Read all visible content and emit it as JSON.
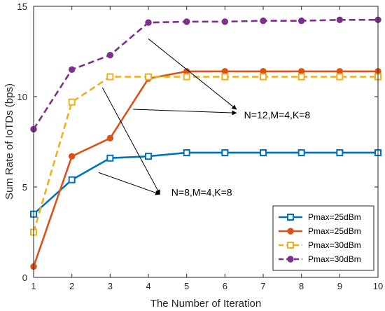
{
  "chart_data": {
    "type": "line",
    "title": "",
    "xlabel": "The Number of Iteration",
    "ylabel": "Sum Rate of IoTDs (bps)",
    "xlim": [
      1,
      10
    ],
    "ylim": [
      0,
      15
    ],
    "x": [
      1,
      2,
      3,
      4,
      5,
      6,
      7,
      8,
      9,
      10
    ],
    "x_ticks": [
      "1",
      "2",
      "3",
      "4",
      "5",
      "6",
      "7",
      "8",
      "9",
      "10"
    ],
    "y_ticks": [
      "0",
      "5",
      "10",
      "15"
    ],
    "grid": false,
    "legend_position": "bottom-right",
    "series": [
      {
        "name": "Pmax=25dBm",
        "color": "#0072BD",
        "line_style": "solid",
        "marker": "square",
        "values": [
          3.5,
          5.4,
          6.6,
          6.7,
          6.9,
          6.9,
          6.9,
          6.9,
          6.9,
          6.9
        ]
      },
      {
        "name": "Pmax=25dBm",
        "color": "#D95319",
        "line_style": "solid",
        "marker": "circle",
        "values": [
          0.6,
          6.7,
          7.7,
          11.0,
          11.4,
          11.4,
          11.4,
          11.4,
          11.4,
          11.4
        ]
      },
      {
        "name": "Pmax=30dBm",
        "color": "#EDB120",
        "line_style": "dashed",
        "marker": "square",
        "values": [
          2.5,
          9.7,
          11.1,
          11.1,
          11.1,
          11.1,
          11.1,
          11.1,
          11.1,
          11.1
        ]
      },
      {
        "name": "Pmax=30dBm",
        "color": "#7E2F8E",
        "line_style": "dashed",
        "marker": "circle",
        "values": [
          8.2,
          11.5,
          12.3,
          14.1,
          14.15,
          14.15,
          14.2,
          14.2,
          14.25,
          14.25
        ]
      }
    ],
    "annotations": [
      {
        "text": "N=12,M=4,K=8",
        "text_at": [
          6.5,
          9.0
        ],
        "arrows": [
          {
            "from": [
              4.0,
              13.2
            ],
            "to": [
              6.3,
              9.3
            ]
          },
          {
            "from": [
              3.6,
              9.3
            ],
            "to": [
              6.3,
              9.1
            ]
          }
        ]
      },
      {
        "text": "N=8,M=4,K=8",
        "text_at": [
          4.6,
          4.7
        ],
        "arrows": [
          {
            "from": [
              2.8,
              10.5
            ],
            "to": [
              4.3,
              4.6
            ]
          },
          {
            "from": [
              2.7,
              5.8
            ],
            "to": [
              4.3,
              4.6
            ]
          }
        ]
      }
    ]
  }
}
